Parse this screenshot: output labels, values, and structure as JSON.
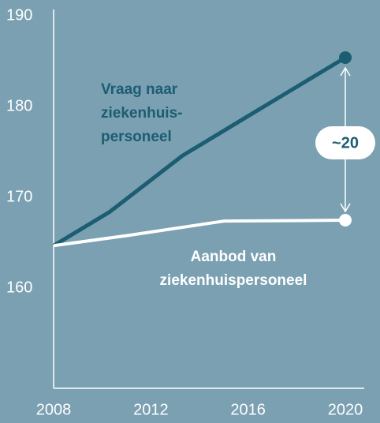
{
  "chart_data": {
    "type": "line",
    "xlim": [
      2008,
      2020
    ],
    "xticks": [
      2008,
      2012,
      2016,
      2020
    ],
    "ylim": [
      149,
      190
    ],
    "yticks": [
      160,
      170,
      180,
      190
    ],
    "series": [
      {
        "name": [
          "Vraag naar",
          "ziekenhuis-",
          "personeel"
        ],
        "color": "#1d5d72",
        "x": [
          2008,
          2010.3,
          2013.3,
          2015.9,
          2020
        ],
        "values": [
          164.7,
          168.4,
          174.6,
          178.8,
          185.4
        ]
      },
      {
        "name": [
          "Aanbod van",
          "ziekenhuispersoneel"
        ],
        "color": "#ffffff",
        "x": [
          2008,
          2011,
          2015,
          2020
        ],
        "values": [
          164.7,
          165.8,
          167.4,
          167.5
        ]
      }
    ],
    "annotation": "~20"
  }
}
